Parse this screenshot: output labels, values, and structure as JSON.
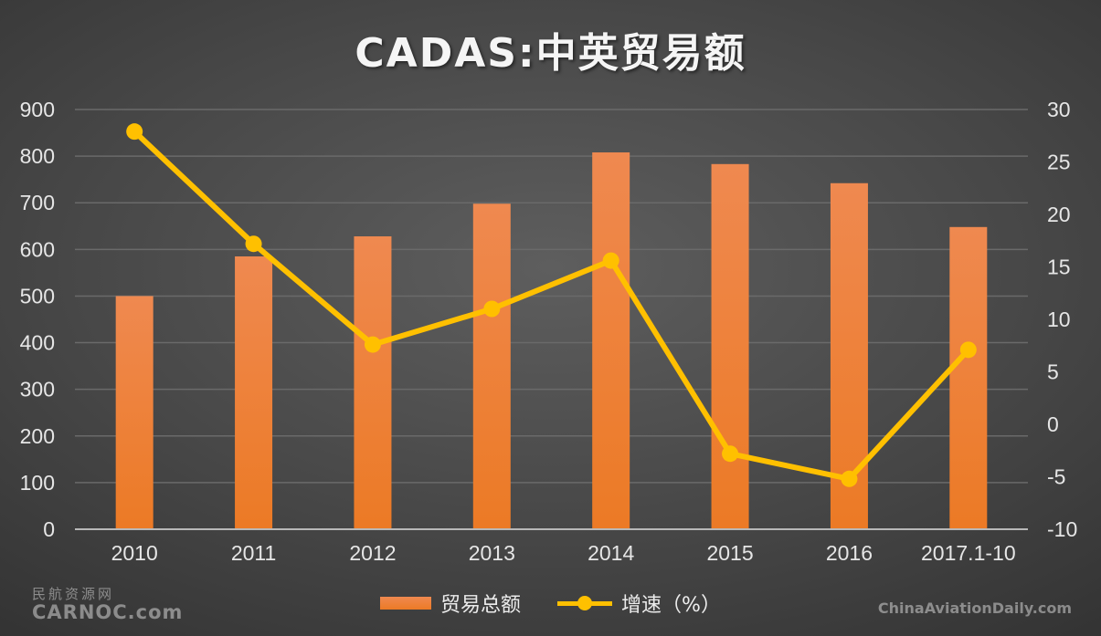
{
  "title": "CADAS:中英贸易额",
  "colors": {
    "bar": "#ec7a25",
    "bar_top": "#ef8950",
    "line": "#ffc000",
    "grid": "#6a6a6a",
    "text": "#e6e6e6"
  },
  "chart_data": {
    "type": "bar",
    "title": "CADAS:中英贸易额",
    "categories": [
      "2010",
      "2011",
      "2012",
      "2013",
      "2014",
      "2015",
      "2016",
      "2017.1-10"
    ],
    "series": [
      {
        "name": "贸易总额",
        "type": "bar",
        "axis": "left",
        "values": [
          500,
          585,
          628,
          698,
          808,
          783,
          742,
          648
        ]
      },
      {
        "name": "增速（%）",
        "type": "line",
        "axis": "right",
        "values": [
          27.9,
          17.2,
          7.6,
          11.0,
          15.6,
          -2.8,
          -5.2,
          7.1
        ]
      }
    ],
    "y_left": {
      "ylim": [
        0,
        900
      ],
      "ticks": [
        0,
        100,
        200,
        300,
        400,
        500,
        600,
        700,
        800,
        900
      ]
    },
    "y_right": {
      "ylim": [
        -10,
        30
      ],
      "ticks": [
        -10,
        -5,
        0,
        5,
        10,
        15,
        20,
        25,
        30
      ]
    },
    "grid": true,
    "legend": "bottom"
  },
  "legend": {
    "bar_label": "贸易总额",
    "line_label": "增速（%）"
  },
  "watermarks": {
    "left_cn": "民航资源网",
    "left_en": "CARNOC.com",
    "right": "ChinaAviationDaily.com"
  }
}
